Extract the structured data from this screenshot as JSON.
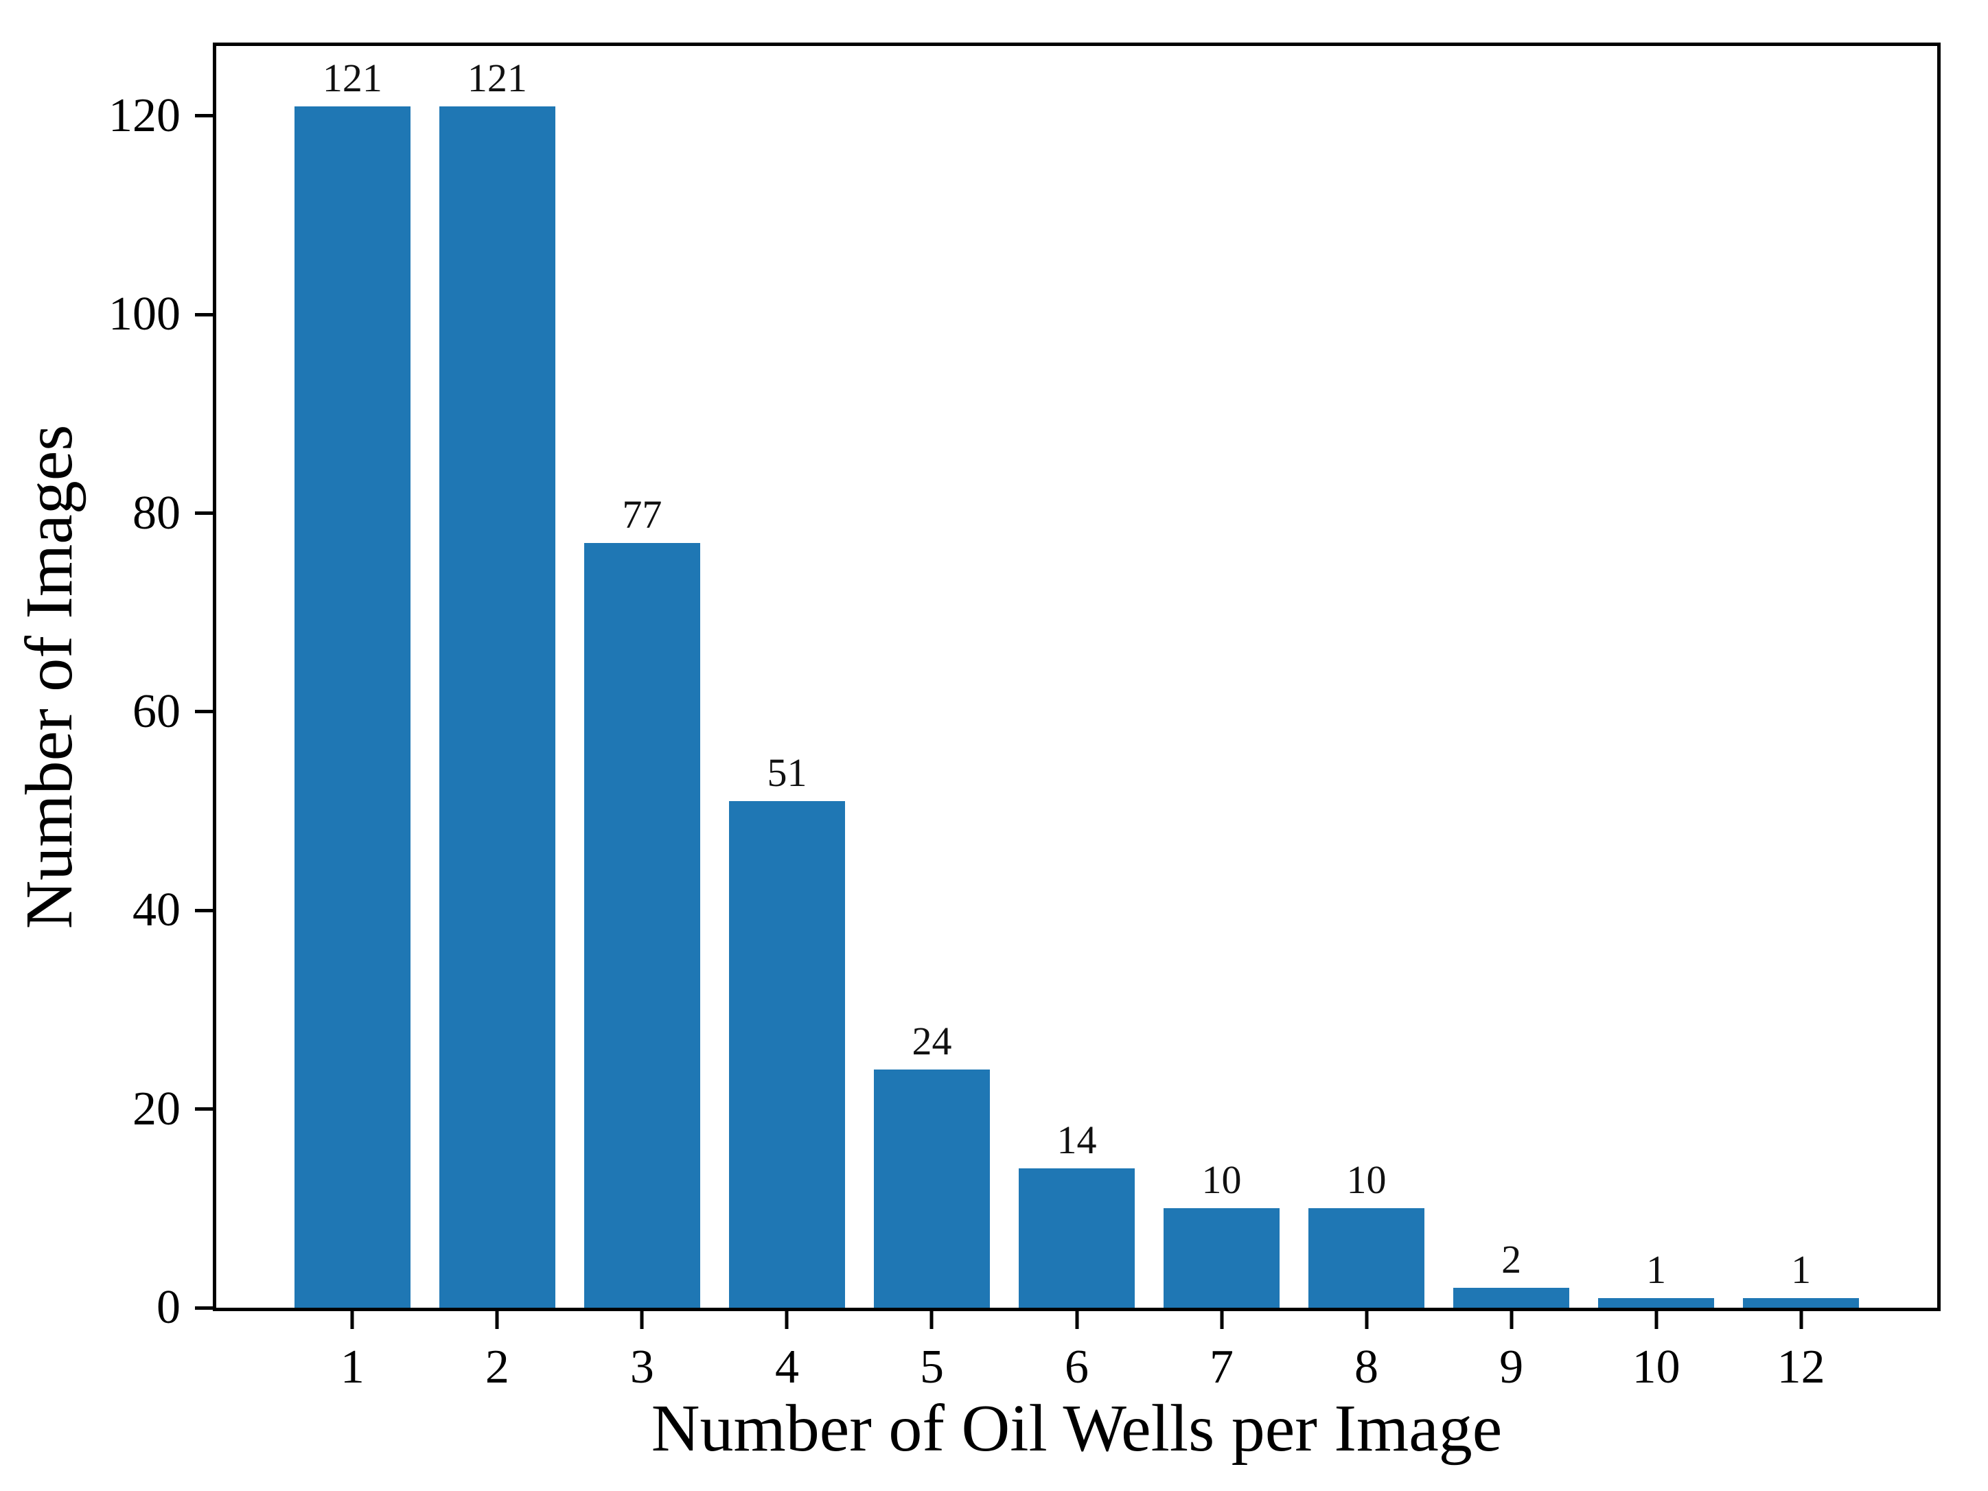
{
  "chart_data": {
    "type": "bar",
    "title": "",
    "xlabel": "Number of Oil Wells per Image",
    "ylabel": "Number of Images",
    "categories": [
      "1",
      "2",
      "3",
      "4",
      "5",
      "6",
      "7",
      "8",
      "9",
      "10",
      "12"
    ],
    "values": [
      121,
      121,
      77,
      51,
      24,
      14,
      10,
      10,
      2,
      1,
      1
    ],
    "bar_value_labels": [
      "121",
      "121",
      "77",
      "51",
      "24",
      "14",
      "10",
      "10",
      "2",
      "1",
      "1"
    ],
    "yticks": [
      0,
      20,
      40,
      60,
      80,
      100,
      120
    ],
    "ylim": [
      0,
      127.05
    ],
    "bar_color": "#1f77b4",
    "axis_color": "#000000",
    "grid": false,
    "legend": null
  }
}
